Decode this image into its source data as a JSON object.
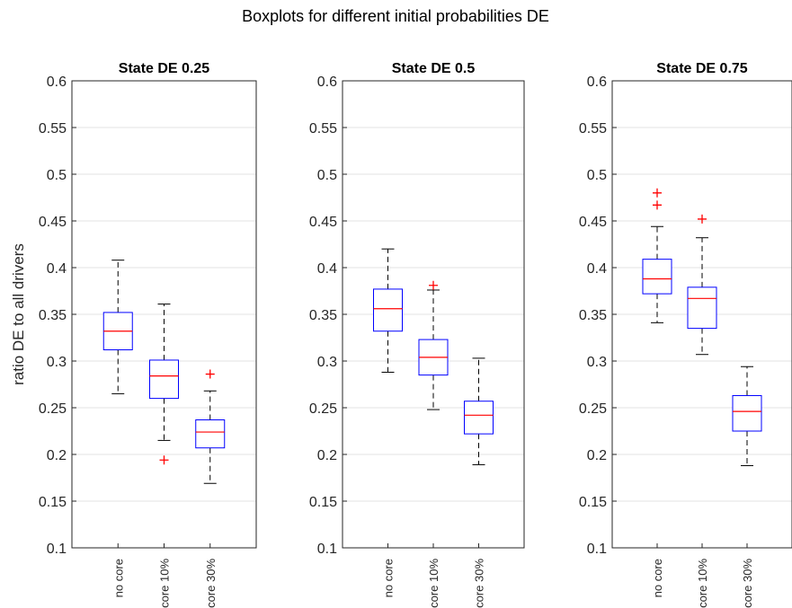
{
  "figure_title": "Boxplots for different initial probabilities DE",
  "chart_data": [
    {
      "type": "box",
      "title": "State DE 0.25",
      "ylabel": "ratio DE to all drivers",
      "xlabel": "",
      "ylim": [
        0.1,
        0.6
      ],
      "yticks": [
        0.1,
        0.15,
        0.2,
        0.25,
        0.3,
        0.35,
        0.4,
        0.45,
        0.5,
        0.55,
        0.6
      ],
      "ytick_labels": [
        "0.1",
        "0.15",
        "0.2",
        "0.25",
        "0.3",
        "0.35",
        "0.4",
        "0.45",
        "0.5",
        "0.55",
        "0.6"
      ],
      "grid": "horizontal",
      "categories": [
        "no core",
        "core 10%",
        "core 30%"
      ],
      "boxes": [
        {
          "whisker_low": 0.265,
          "q1": 0.312,
          "median": 0.332,
          "q3": 0.352,
          "whisker_high": 0.408,
          "outliers": []
        },
        {
          "whisker_low": 0.215,
          "q1": 0.26,
          "median": 0.284,
          "q3": 0.301,
          "whisker_high": 0.361,
          "outliers": [
            0.194
          ]
        },
        {
          "whisker_low": 0.169,
          "q1": 0.207,
          "median": 0.224,
          "q3": 0.237,
          "whisker_high": 0.268,
          "outliers": [
            0.286
          ]
        }
      ]
    },
    {
      "type": "box",
      "title": "State DE 0.5",
      "ylabel": "",
      "xlabel": "",
      "ylim": [
        0.1,
        0.6
      ],
      "yticks": [
        0.1,
        0.15,
        0.2,
        0.25,
        0.3,
        0.35,
        0.4,
        0.45,
        0.5,
        0.55,
        0.6
      ],
      "ytick_labels": [
        "0.1",
        "0.15",
        "0.2",
        "0.25",
        "0.3",
        "0.35",
        "0.4",
        "0.45",
        "0.5",
        "0.55",
        "0.6"
      ],
      "grid": "horizontal",
      "categories": [
        "no core",
        "core 10%",
        "core 30%"
      ],
      "boxes": [
        {
          "whisker_low": 0.288,
          "q1": 0.332,
          "median": 0.356,
          "q3": 0.377,
          "whisker_high": 0.42,
          "outliers": []
        },
        {
          "whisker_low": 0.248,
          "q1": 0.285,
          "median": 0.304,
          "q3": 0.323,
          "whisker_high": 0.376,
          "outliers": [
            0.381
          ]
        },
        {
          "whisker_low": 0.189,
          "q1": 0.222,
          "median": 0.242,
          "q3": 0.257,
          "whisker_high": 0.303,
          "outliers": []
        }
      ]
    },
    {
      "type": "box",
      "title": "State DE 0.75",
      "ylabel": "",
      "xlabel": "",
      "ylim": [
        0.1,
        0.6
      ],
      "yticks": [
        0.1,
        0.15,
        0.2,
        0.25,
        0.3,
        0.35,
        0.4,
        0.45,
        0.5,
        0.55,
        0.6
      ],
      "ytick_labels": [
        "0.1",
        "0.15",
        "0.2",
        "0.25",
        "0.3",
        "0.35",
        "0.4",
        "0.45",
        "0.5",
        "0.55",
        "0.6"
      ],
      "grid": "horizontal",
      "categories": [
        "no core",
        "core 10%",
        "core 30%"
      ],
      "boxes": [
        {
          "whisker_low": 0.341,
          "q1": 0.372,
          "median": 0.388,
          "q3": 0.409,
          "whisker_high": 0.444,
          "outliers": [
            0.467,
            0.48
          ]
        },
        {
          "whisker_low": 0.307,
          "q1": 0.335,
          "median": 0.367,
          "q3": 0.379,
          "whisker_high": 0.432,
          "outliers": [
            0.452
          ]
        },
        {
          "whisker_low": 0.188,
          "q1": 0.225,
          "median": 0.246,
          "q3": 0.263,
          "whisker_high": 0.294,
          "outliers": []
        }
      ]
    }
  ],
  "colors": {
    "box": "#0000ff",
    "median": "#ff0000",
    "whisker": "#000000",
    "outlier": "#ff0000",
    "axis": "#262626",
    "grid": "#e3e3e3"
  }
}
